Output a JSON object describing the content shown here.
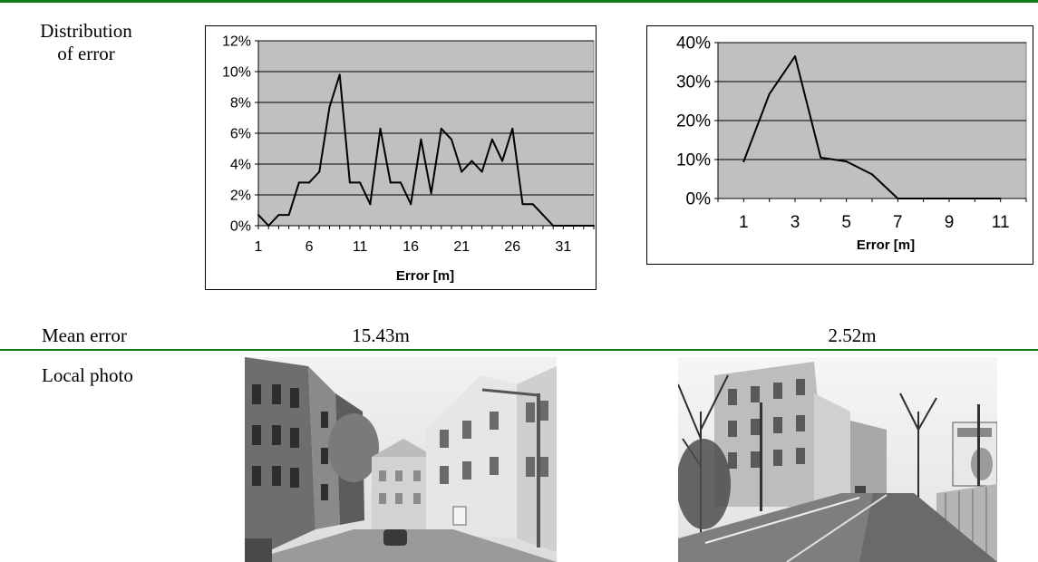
{
  "rows": {
    "distribution_label_line1": "Distribution",
    "distribution_label_line2": "of error",
    "mean_error_label": "Mean error",
    "local_photo_label": "Local photo"
  },
  "mean_errors": {
    "left": "15.43m",
    "right": "2.52m"
  },
  "photos": {
    "left": "street photo with buildings and a car",
    "right": "street photo with buildings and a billboard"
  },
  "chart_data": [
    {
      "type": "line",
      "xlabel": "Error [m]",
      "ylabel": "",
      "x": [
        1,
        2,
        3,
        4,
        5,
        6,
        7,
        8,
        9,
        10,
        11,
        12,
        13,
        14,
        15,
        16,
        17,
        18,
        19,
        20,
        21,
        22,
        23,
        24,
        25,
        26,
        27,
        28,
        29,
        30,
        31,
        32,
        33,
        34
      ],
      "y": [
        0.7,
        0.0,
        0.7,
        0.7,
        2.8,
        2.8,
        3.5,
        7.7,
        9.8,
        2.8,
        2.8,
        1.4,
        6.3,
        2.8,
        2.8,
        1.4,
        5.6,
        2.1,
        6.3,
        5.6,
        3.5,
        4.2,
        3.5,
        5.6,
        4.2,
        6.3,
        1.4,
        1.4,
        0.7,
        0.0,
        0.0,
        0.0,
        0.0,
        0.0
      ],
      "x_tick_labels": [
        "1",
        "6",
        "11",
        "16",
        "21",
        "26",
        "31"
      ],
      "x_tick_values": [
        1,
        6,
        11,
        16,
        21,
        26,
        31
      ],
      "y_tick_labels": [
        "0%",
        "2%",
        "4%",
        "6%",
        "8%",
        "10%",
        "12%"
      ],
      "ylim": [
        0,
        12
      ],
      "xlim": [
        1,
        34
      ],
      "grid": true,
      "plot_background": "#c0c0c0"
    },
    {
      "type": "line",
      "xlabel": "Error [m]",
      "ylabel": "",
      "x": [
        1,
        2,
        3,
        4,
        5,
        6,
        7,
        8,
        9,
        10,
        11
      ],
      "y": [
        9.5,
        26.8,
        36.5,
        10.5,
        9.5,
        6.2,
        0.0,
        0.0,
        0.0,
        0.0,
        0.0
      ],
      "x_tick_labels": [
        "1",
        "3",
        "5",
        "7",
        "9",
        "11"
      ],
      "x_tick_values": [
        1,
        3,
        5,
        7,
        9,
        11
      ],
      "y_tick_labels": [
        "0%",
        "10%",
        "20%",
        "30%",
        "40%"
      ],
      "ylim": [
        0,
        40
      ],
      "xlim": [
        0,
        12
      ],
      "grid": true,
      "plot_background": "#c0c0c0"
    }
  ]
}
